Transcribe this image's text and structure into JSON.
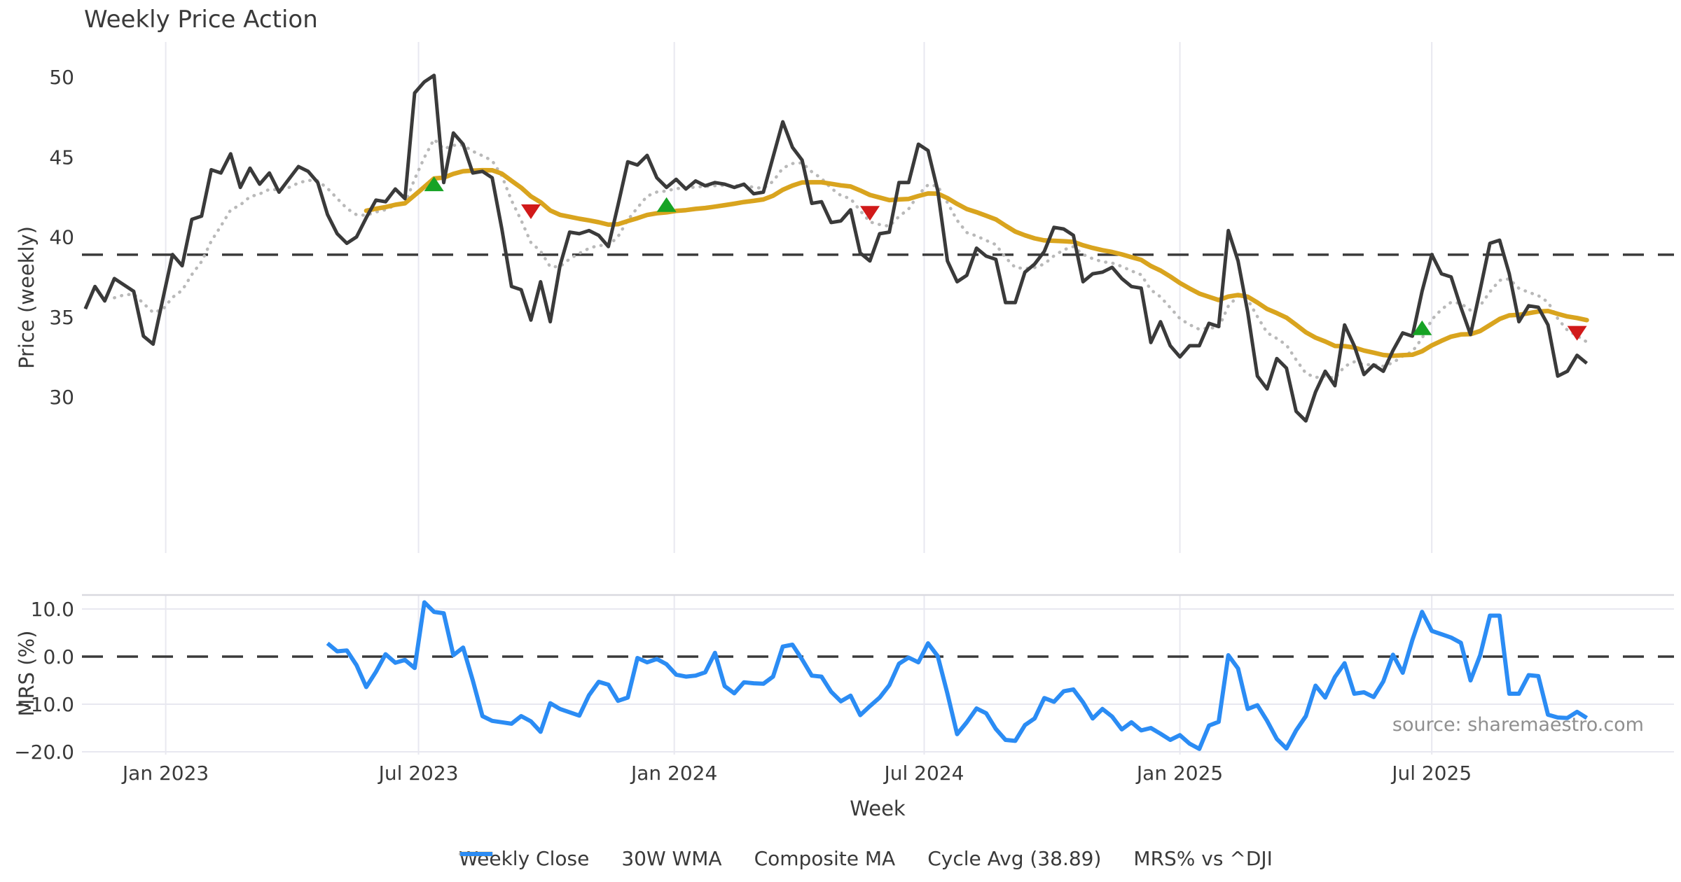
{
  "chart_data": {
    "type": "line",
    "title": "Weekly Price Action",
    "xlabel": "Week",
    "source": "source: sharemaestro.com",
    "x_unit": "week_index",
    "xlim": [
      -0.5,
      163
    ],
    "x_ticks": [
      {
        "pos": 8.3,
        "label": "Jan 2023"
      },
      {
        "pos": 34.4,
        "label": "Jul 2023"
      },
      {
        "pos": 60.8,
        "label": "Jan 2024"
      },
      {
        "pos": 86.6,
        "label": "Jul 2024"
      },
      {
        "pos": 113.0,
        "label": "Jan 2025"
      },
      {
        "pos": 139.0,
        "label": "Jul 2025"
      }
    ],
    "panels": [
      {
        "id": "price",
        "ylabel": "Price (weekly)",
        "ylim": [
          20.2,
          52.2
        ],
        "yticks": [
          {
            "v": 50,
            "label": "50"
          },
          {
            "v": 45,
            "label": "45"
          },
          {
            "v": 40,
            "label": "40"
          },
          {
            "v": 35,
            "label": "35"
          },
          {
            "v": 30,
            "label": "30"
          }
        ]
      },
      {
        "id": "mrs",
        "ylabel": "MRS (%)",
        "ylim": [
          -20.6,
          12.9
        ],
        "yticks": [
          {
            "v": 10,
            "label": "10.0"
          },
          {
            "v": 0,
            "label": "0.0"
          },
          {
            "v": -10,
            "label": "−10.0"
          },
          {
            "v": -20,
            "label": "−20.0"
          }
        ]
      }
    ],
    "cycle_avg": 38.89,
    "series": [
      {
        "name": "Weekly Close",
        "panel": "price",
        "color": "#3a3a3a",
        "style": "solid",
        "width": 5,
        "start_week": 0,
        "values": [
          35.5,
          36.9,
          36.0,
          37.4,
          37.0,
          36.6,
          33.8,
          33.3,
          36.1,
          38.9,
          38.2,
          41.1,
          41.3,
          44.2,
          44.0,
          45.2,
          43.1,
          44.3,
          43.3,
          44.0,
          42.8,
          43.6,
          44.4,
          44.1,
          43.4,
          41.4,
          40.2,
          39.6,
          40.0,
          41.2,
          42.3,
          42.2,
          43.0,
          42.4,
          49.0,
          49.7,
          50.1,
          43.4,
          46.5,
          45.8,
          44.0,
          44.1,
          43.7,
          40.5,
          36.9,
          36.7,
          34.8,
          37.2,
          34.7,
          38.2,
          40.3,
          40.2,
          40.4,
          40.1,
          39.4,
          42.0,
          44.7,
          44.5,
          45.1,
          43.7,
          43.1,
          43.6,
          43.0,
          43.5,
          43.2,
          43.4,
          43.3,
          43.1,
          43.3,
          42.7,
          42.8,
          45.0,
          47.2,
          45.6,
          44.8,
          42.1,
          42.2,
          40.9,
          41.0,
          41.7,
          39.0,
          38.5,
          40.2,
          40.3,
          43.4,
          43.4,
          45.8,
          45.4,
          42.9,
          38.5,
          37.2,
          37.6,
          39.3,
          38.8,
          38.6,
          35.9,
          35.9,
          37.8,
          38.3,
          39.1,
          40.6,
          40.5,
          40.1,
          37.2,
          37.7,
          37.8,
          38.1,
          37.4,
          36.9,
          36.8,
          33.4,
          34.7,
          33.2,
          32.5,
          33.2,
          33.2,
          34.6,
          34.4,
          40.4,
          38.5,
          35.3,
          31.3,
          30.5,
          32.4,
          31.8,
          29.1,
          28.5,
          30.3,
          31.6,
          30.7,
          34.5,
          33.2,
          31.4,
          32.0,
          31.6,
          32.9,
          34.0,
          33.8,
          36.6,
          38.9,
          37.7,
          37.5,
          35.6,
          33.9,
          36.7,
          39.6,
          39.8,
          37.7,
          34.7,
          35.7,
          35.6,
          34.5,
          31.3,
          31.6,
          32.6,
          32.1
        ]
      },
      {
        "name": "30W WMA",
        "panel": "price",
        "color": "#d9a41e",
        "style": "solid",
        "width": 6.5,
        "derived": {
          "op": "wma",
          "window": 30,
          "of": "Weekly Close"
        }
      },
      {
        "name": "Composite MA",
        "panel": "price",
        "color": "#b9b9b9",
        "style": "dotted",
        "width": 4.5,
        "derived": {
          "op": "ema",
          "span": 8,
          "of": "Weekly Close",
          "skip": 3
        }
      },
      {
        "name": "Cycle Avg (38.89)",
        "panel": "price",
        "color": "#3a3a3a",
        "style": "dashed",
        "width": 3.5,
        "constant": 38.89
      },
      {
        "name": "MRS% vs ^DJI",
        "panel": "mrs",
        "color": "#2b8cf4",
        "style": "solid",
        "width": 6,
        "start_week": 25,
        "values": [
          2.8,
          1.1,
          1.3,
          -1.8,
          -6.4,
          -3.2,
          0.5,
          -1.3,
          -0.7,
          -2.4,
          11.4,
          9.4,
          9.1,
          0.3,
          1.9,
          -5.0,
          -12.5,
          -13.5,
          -13.8,
          -14.1,
          -12.5,
          -13.6,
          -15.8,
          -9.8,
          -11.0,
          -11.7,
          -12.4,
          -8.1,
          -5.3,
          -5.9,
          -9.3,
          -8.6,
          -0.3,
          -1.2,
          -0.5,
          -1.6,
          -3.8,
          -4.2,
          -4.0,
          -3.3,
          0.8,
          -6.2,
          -7.7,
          -5.4,
          -5.6,
          -5.7,
          -4.2,
          2.1,
          2.5,
          -0.6,
          -4.0,
          -4.2,
          -7.4,
          -9.4,
          -8.2,
          -12.3,
          -10.4,
          -8.6,
          -6.0,
          -1.5,
          -0.2,
          -1.2,
          2.8,
          0.1,
          -7.8,
          -16.3,
          -13.8,
          -10.9,
          -11.9,
          -15.2,
          -17.5,
          -17.7,
          -14.4,
          -13.0,
          -8.7,
          -9.5,
          -7.3,
          -6.9,
          -9.6,
          -13.0,
          -11.0,
          -12.6,
          -15.3,
          -13.8,
          -15.5,
          -15.0,
          -16.2,
          -17.5,
          -16.5,
          -18.3,
          -19.4,
          -14.5,
          -13.7,
          0.3,
          -2.5,
          -11.0,
          -10.2,
          -13.5,
          -17.3,
          -19.3,
          -15.5,
          -12.5,
          -6.1,
          -8.6,
          -4.3,
          -1.4,
          -7.8,
          -7.5,
          -8.5,
          -5.2,
          0.4,
          -3.4,
          3.5,
          9.4,
          5.4,
          4.7,
          4.0,
          2.9,
          -5.0,
          0.3,
          8.6,
          8.6,
          -7.8,
          -7.8,
          -3.9,
          -4.1,
          -12.2,
          -12.8,
          -12.9,
          -11.6,
          -12.9
        ]
      },
      {
        "name": "MRS zero line",
        "panel": "mrs",
        "color": "#3a3a3a",
        "style": "dashed",
        "width": 3.5,
        "constant": 0,
        "in_legend": false
      }
    ],
    "markers": {
      "buy": {
        "shape": "triangle-up",
        "color": "#17a325",
        "points": [
          {
            "week": 36,
            "value": 43.3
          },
          {
            "week": 60,
            "value": 42.0
          },
          {
            "week": 138,
            "value": 34.3
          }
        ]
      },
      "sell": {
        "shape": "triangle-down",
        "color": "#d11a1a",
        "points": [
          {
            "week": 46,
            "value": 41.6
          },
          {
            "week": 81,
            "value": 41.5
          },
          {
            "week": 154,
            "value": 34.0
          }
        ]
      }
    },
    "legend": [
      {
        "label": "Weekly Close",
        "color": "#3a3a3a",
        "style": "solid",
        "width": 5
      },
      {
        "label": "30W WMA",
        "color": "#d9a41e",
        "style": "solid",
        "width": 6.5
      },
      {
        "label": "Composite MA",
        "color": "#b9b9b9",
        "style": "dotted",
        "width": 4.5
      },
      {
        "label": "Cycle Avg (38.89)",
        "color": "#3a3a3a",
        "style": "dashed",
        "width": 3.5
      },
      {
        "label": "MRS% vs ^DJI",
        "color": "#2b8cf4",
        "style": "solid",
        "width": 6
      }
    ],
    "colors": {
      "grid": "#e8e8f0",
      "panel_border": "#d9d9e0",
      "text": "#3a3a3a",
      "source_text": "#8f8f8f"
    }
  }
}
